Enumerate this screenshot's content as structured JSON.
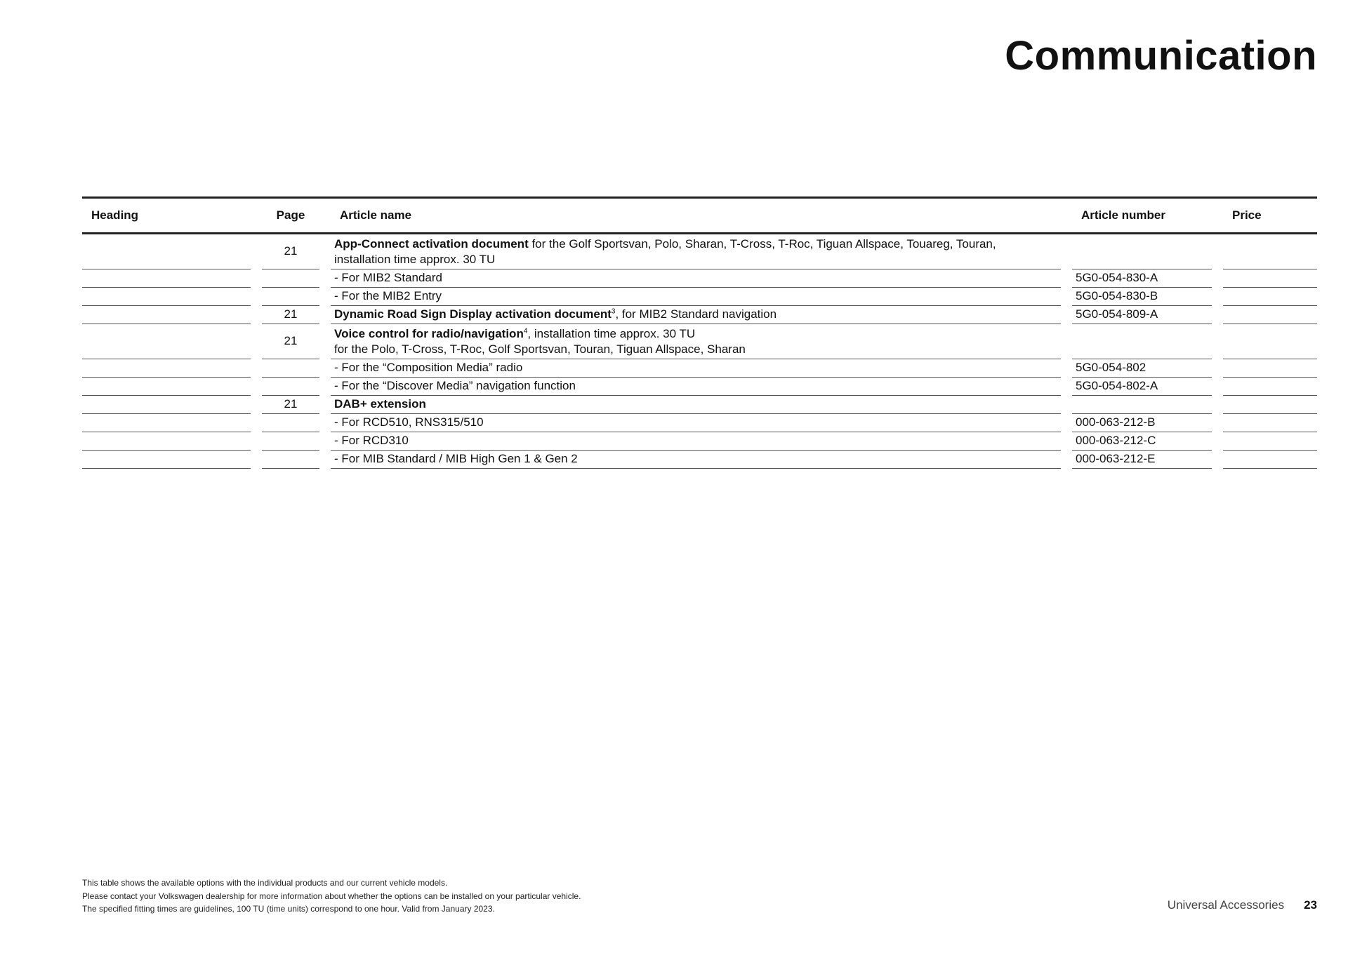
{
  "title": "Communication",
  "table": {
    "headers": {
      "heading": "Heading",
      "page": "Page",
      "article_name": "Article name",
      "article_number": "Article number",
      "price": "Price"
    },
    "rows": [
      {
        "page": "21",
        "bold": "App-Connect activation document",
        "sup": "",
        "text": " for the Golf Sportsvan, Polo, Sharan, T-Cross, T-Roc, Tiguan Allspace, Touareg, Touran,",
        "line2": "installation time approx. 30 TU",
        "article_number": "",
        "price": ""
      },
      {
        "page": "",
        "bold": "",
        "sup": "",
        "text": "- For MIB2 Standard",
        "line2": "",
        "article_number": "5G0-054-830-A",
        "price": ""
      },
      {
        "page": "",
        "bold": "",
        "sup": "",
        "text": "- For the MIB2 Entry",
        "line2": "",
        "article_number": "5G0-054-830-B",
        "price": ""
      },
      {
        "page": "21",
        "bold": "Dynamic Road Sign Display activation document",
        "sup": "3",
        "text": ", for MIB2 Standard navigation",
        "line2": "",
        "article_number": "5G0-054-809-A",
        "price": ""
      },
      {
        "page": "21",
        "bold": "Voice control for radio/navigation",
        "sup": "4",
        "text": ", installation time approx. 30 TU",
        "line2": "for the Polo, T-Cross, T-Roc, Golf Sportsvan, Touran, Tiguan Allspace, Sharan",
        "article_number": "",
        "price": ""
      },
      {
        "page": "",
        "bold": "",
        "sup": "",
        "text": "- For the “Composition Media” radio",
        "line2": "",
        "article_number": "5G0-054-802",
        "price": ""
      },
      {
        "page": "",
        "bold": "",
        "sup": "",
        "text": "- For the “Discover Media” navigation function",
        "line2": "",
        "article_number": "5G0-054-802-A",
        "price": ""
      },
      {
        "page": "21",
        "bold": "DAB+ extension",
        "sup": "",
        "text": "",
        "line2": "",
        "article_number": "",
        "price": ""
      },
      {
        "page": "",
        "bold": "",
        "sup": "",
        "text": "- For RCD510, RNS315/510",
        "line2": "",
        "article_number": "000-063-212-B",
        "price": ""
      },
      {
        "page": "",
        "bold": "",
        "sup": "",
        "text": "- For RCD310",
        "line2": "",
        "article_number": "000-063-212-C",
        "price": ""
      },
      {
        "page": "",
        "bold": "",
        "sup": "",
        "text": "- For MIB Standard / MIB High Gen 1 & Gen 2",
        "line2": "",
        "article_number": "000-063-212-E",
        "price": ""
      }
    ]
  },
  "footnotes": [
    "This table shows the available options with the individual products and our current vehicle models.",
    "Please contact your Volkswagen dealership for more information about whether the options can be installed on your particular vehicle.",
    "The specified fitting times are guidelines, 100 TU (time units) correspond to one hour. Valid from January 2023."
  ],
  "footer": {
    "section": "Universal Accessories",
    "page_number": "23"
  }
}
